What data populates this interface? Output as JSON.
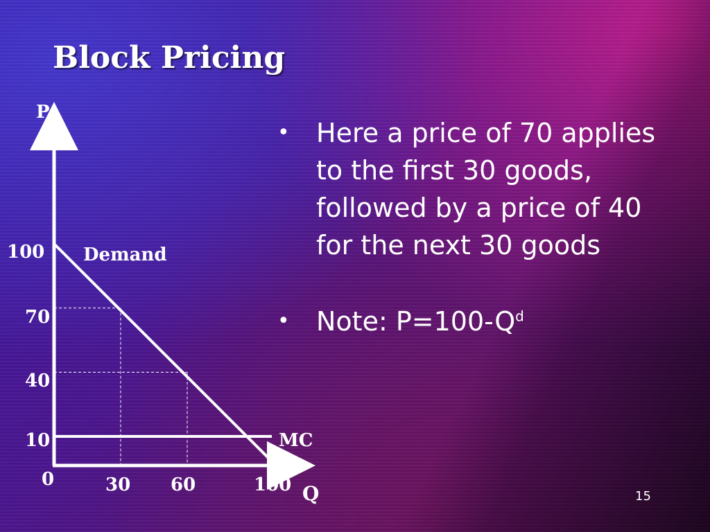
{
  "slide": {
    "title": "Block Pricing",
    "page_number": "15"
  },
  "bullets": [
    {
      "text": "Here a price of 70 applies to the first 30 goods, followed by a price of 40 for the next 30 goods"
    },
    {
      "text": "Note: P=100-Q",
      "superscript": "d"
    }
  ],
  "chart_data": {
    "type": "line",
    "xlabel": "Q",
    "ylabel": "P",
    "origin_label": "0",
    "x_ticks": [
      "30",
      "60",
      "100"
    ],
    "y_ticks": [
      "100",
      "70",
      "40",
      "10"
    ],
    "xlim": [
      0,
      100
    ],
    "ylim": [
      0,
      100
    ],
    "series": [
      {
        "name": "Demand",
        "x": [
          0,
          100
        ],
        "y": [
          100,
          0
        ]
      },
      {
        "name": "MC",
        "x": [
          0,
          100
        ],
        "y": [
          10,
          10
        ]
      }
    ],
    "dashed_guides": [
      {
        "x": 30,
        "y": 70
      },
      {
        "x": 60,
        "y": 40
      }
    ]
  }
}
